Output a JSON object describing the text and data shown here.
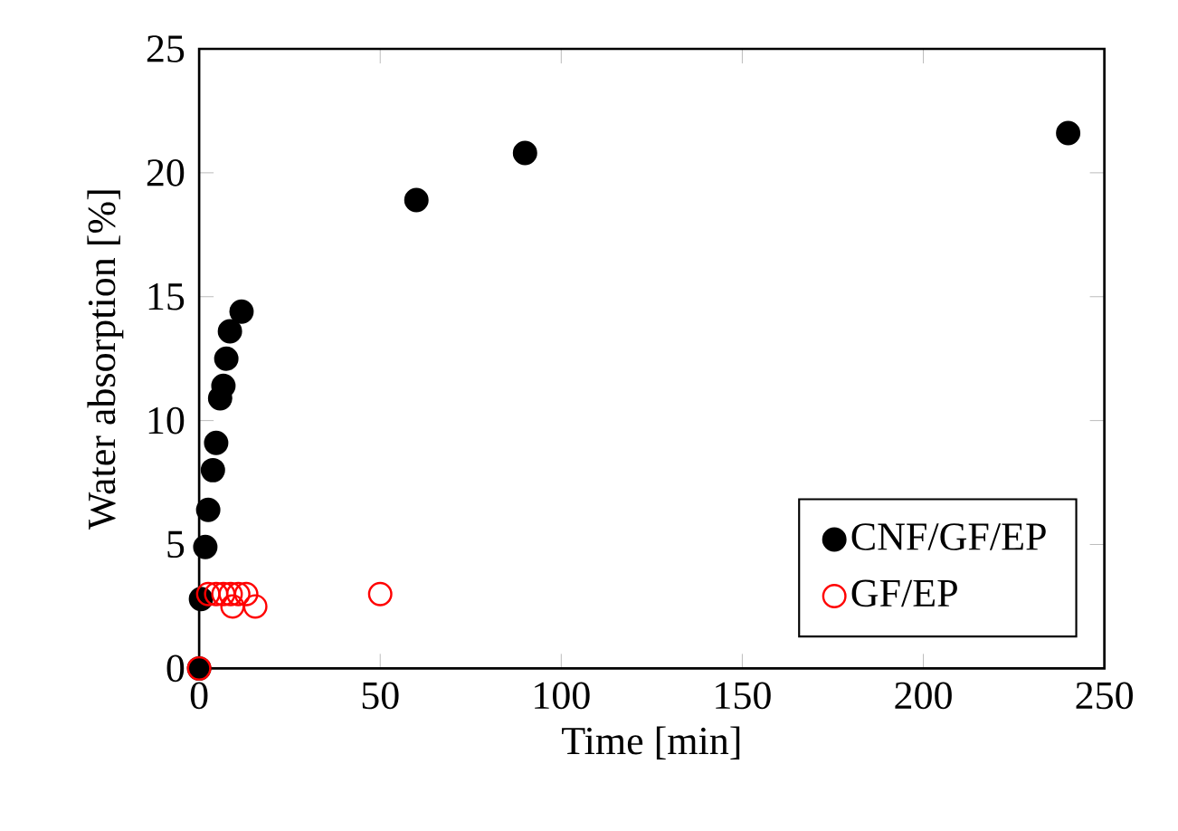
{
  "chart_data": {
    "type": "scatter",
    "xlabel": "Time [min]",
    "ylabel": "Water absorption [%]",
    "xlim": [
      0,
      250
    ],
    "xticks": [
      0,
      50,
      100,
      150,
      200,
      250
    ],
    "ylim": [
      0,
      25
    ],
    "yticks": [
      0,
      5,
      10,
      15,
      20,
      25
    ],
    "legend": "bottom right",
    "marker": "circle",
    "series": [
      {
        "name": "CNF/GF/EP",
        "color": "#000000",
        "x": [
          0,
          0.5,
          1.7,
          2.5,
          3.8,
          4.7,
          5.8,
          6.7,
          7.5,
          8.5,
          11.7,
          60,
          90,
          240
        ],
        "values": [
          0,
          2.8,
          4.9,
          6.4,
          8.0,
          9.1,
          10.9,
          11.4,
          12.5,
          13.6,
          14.4,
          18.9,
          20.8,
          21.6
        ]
      },
      {
        "name": "GF/EP",
        "color": "#ff0000",
        "x": [
          0,
          2.5,
          4.7,
          6.7,
          8.7,
          9.2,
          10.8,
          13,
          15.5,
          50
        ],
        "values": [
          0,
          3.0,
          3.0,
          3.0,
          3.0,
          2.5,
          3.0,
          3.0,
          2.5,
          3.0
        ]
      }
    ]
  }
}
